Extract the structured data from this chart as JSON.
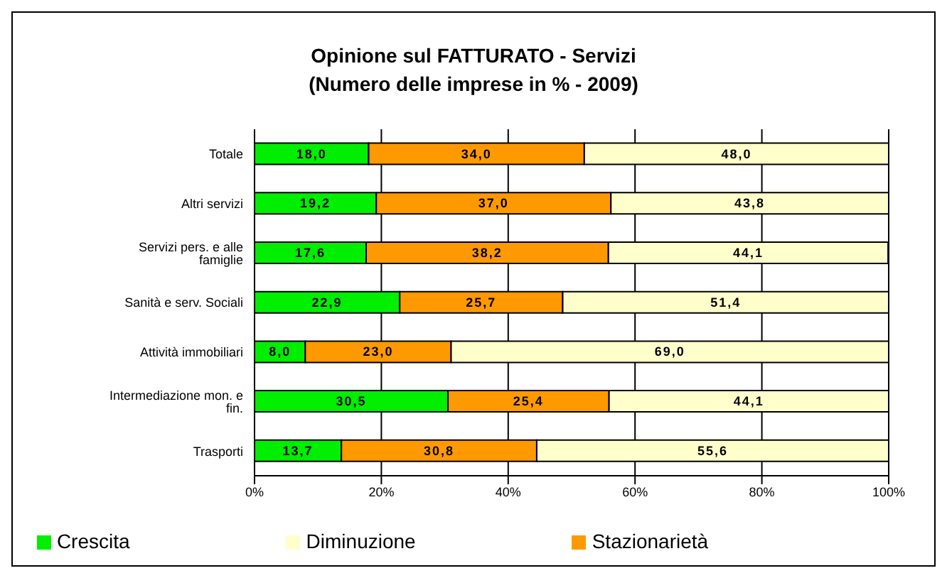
{
  "chart_data": {
    "type": "bar",
    "orientation": "horizontal",
    "stacked": true,
    "title": "Opinione sul FATTURATO - Servizi",
    "subtitle": "(Numero delle imprese in % -  2009)",
    "categories": [
      "Totale",
      "Altri servizi",
      "Servizi pers. e alle famiglie",
      "Sanità e serv. Sociali",
      "Attività immobiliari",
      "Intermediazione mon. e fin.",
      "Trasporti"
    ],
    "series": [
      {
        "name": "Crescita",
        "color": "#00ee00",
        "values": [
          18.0,
          19.2,
          17.6,
          22.9,
          8.0,
          30.5,
          13.7
        ],
        "value_labels": [
          "18,0",
          "19,2",
          "17,6",
          "22,9",
          "8,0",
          "30,5",
          "13,7"
        ]
      },
      {
        "name": "Stazionarietà",
        "color": "#ff9900",
        "values": [
          34.0,
          37.0,
          38.2,
          25.7,
          23.0,
          25.4,
          30.8
        ],
        "value_labels": [
          "34,0",
          "37,0",
          "38,2",
          "25,7",
          "23,0",
          "25,4",
          "30,8"
        ]
      },
      {
        "name": "Diminuzione",
        "color": "#ffffcc",
        "values": [
          48.0,
          43.8,
          44.1,
          51.4,
          69.0,
          44.1,
          55.6
        ],
        "value_labels": [
          "48,0",
          "43,8",
          "44,1",
          "51,4",
          "69,0",
          "44,1",
          "55,6"
        ]
      }
    ],
    "xlim": [
      0,
      100
    ],
    "xticks": [
      {
        "value": 0,
        "label": "0%"
      },
      {
        "value": 20,
        "label": "20%"
      },
      {
        "value": 40,
        "label": "40%"
      },
      {
        "value": 60,
        "label": "60%"
      },
      {
        "value": 80,
        "label": "80%"
      },
      {
        "value": 100,
        "label": "100%"
      }
    ],
    "grid": "x",
    "legend": "bottom"
  }
}
